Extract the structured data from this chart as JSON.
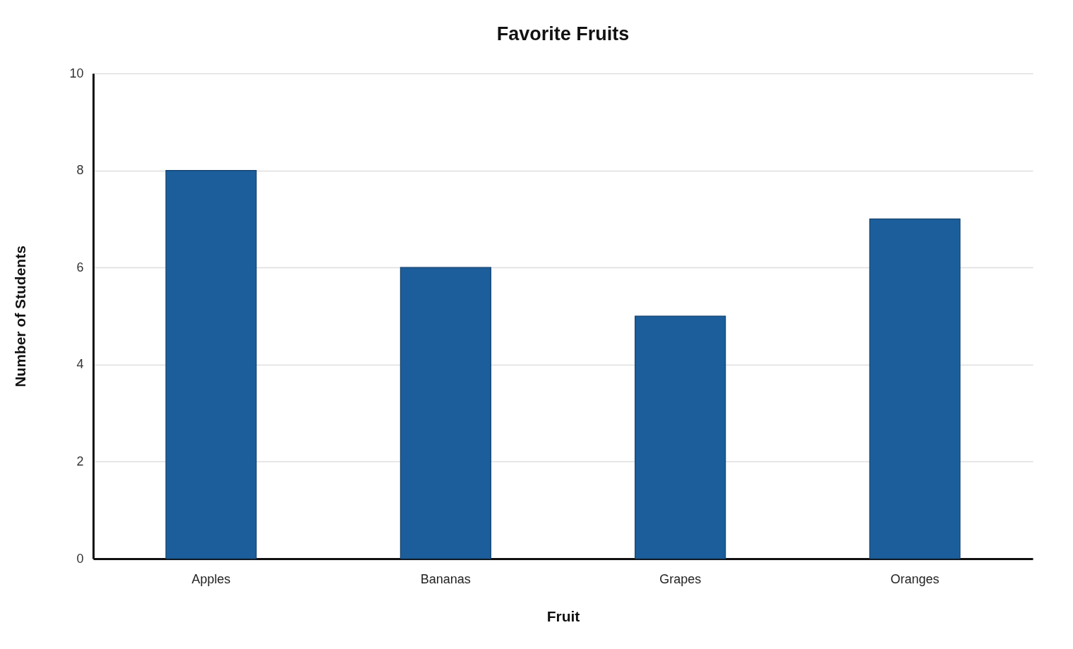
{
  "chart_data": {
    "type": "bar",
    "title": "Favorite Fruits",
    "xlabel": "Fruit",
    "ylabel": "Number of Students",
    "categories": [
      "Apples",
      "Bananas",
      "Grapes",
      "Oranges"
    ],
    "values": [
      8,
      6,
      5,
      7
    ],
    "color": "#1b5e9b",
    "ylim": [
      0,
      10
    ],
    "yticks": [
      0,
      2,
      4,
      6,
      8,
      10
    ],
    "grid": "y"
  }
}
